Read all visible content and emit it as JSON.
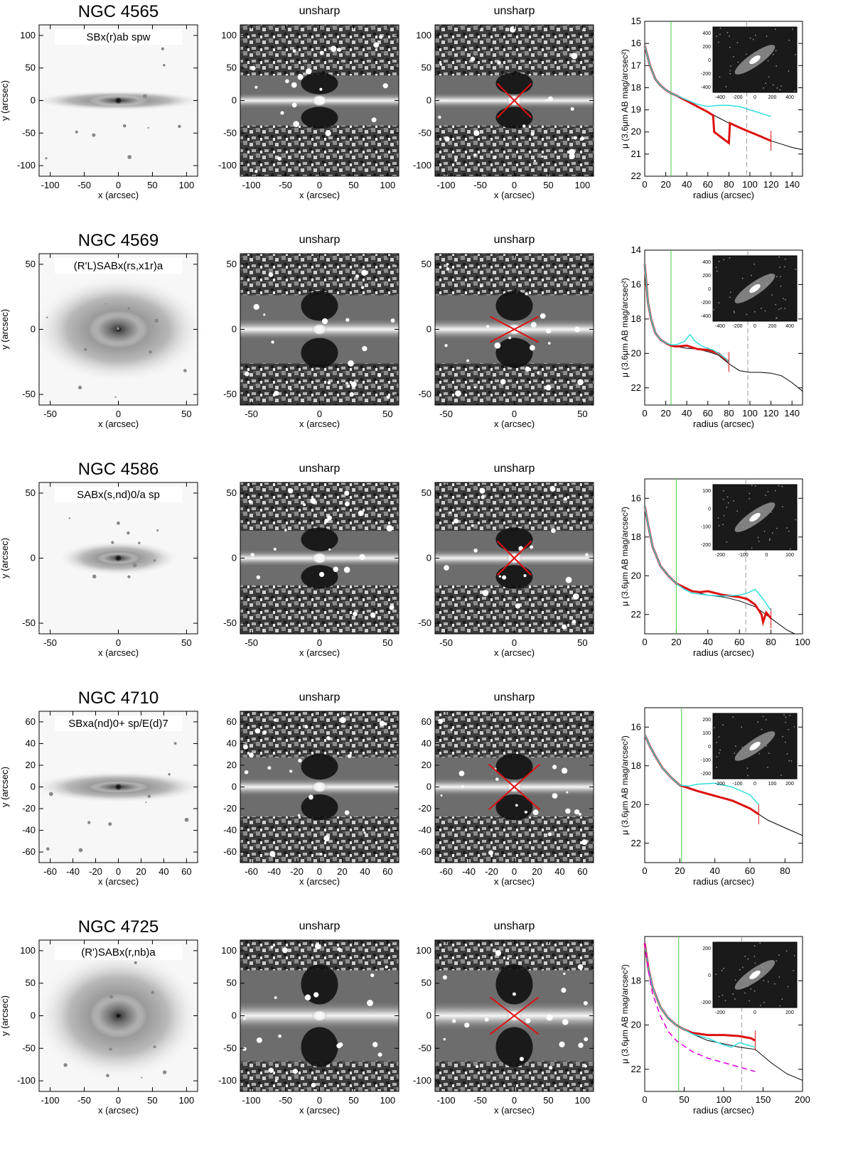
{
  "figure": {
    "labels": {
      "unsharp": "unsharp",
      "x_axis": "x (arcsec)",
      "y_axis": "y (arcsec)"
    },
    "colors": {
      "cross": "#dd1010",
      "profile": "#000000",
      "red_profile": "#dd1010",
      "cyan_profile": "#33dddd",
      "green_line": "#44cc44",
      "dashed_line": "#999999",
      "magenta_profile": "#dd00dd"
    }
  },
  "rows": [
    {
      "title": "NGC 4565",
      "classification": "SBx(r)ab spw",
      "image_ticks": [
        "-100",
        "-50",
        "0",
        "50",
        "100"
      ],
      "profile": {
        "xlabel": "radius (arcsec)",
        "ylabel": "μ (3.6μm AB mag/arcsec²)",
        "xlim": [
          0,
          150
        ],
        "ylim": [
          22,
          15
        ],
        "xticks": [
          "0",
          "20",
          "40",
          "60",
          "80",
          "100",
          "120",
          "140"
        ],
        "yticks": [
          "15",
          "16",
          "17",
          "18",
          "19",
          "20",
          "21",
          "22"
        ],
        "inset_ticks": [
          "400",
          "200",
          "0",
          "-200",
          "-400"
        ],
        "inset_xticks": [
          "-400",
          "-200",
          "0",
          "200",
          "400"
        ]
      }
    },
    {
      "title": "NGC 4569",
      "classification": "(R'L)SABx(rs,x1r)a",
      "image_ticks": [
        "-50",
        "0",
        "50"
      ],
      "profile": {
        "xlabel": "radius (arcsec)",
        "ylabel": "μ (3.6μm AB mag/arcsec²)",
        "xlim": [
          0,
          150
        ],
        "ylim": [
          23,
          14
        ],
        "xticks": [
          "0",
          "20",
          "40",
          "60",
          "80",
          "100",
          "120",
          "140"
        ],
        "yticks": [
          "14",
          "16",
          "18",
          "20",
          "22"
        ],
        "inset_ticks": [
          "400",
          "200",
          "0",
          "-200",
          "-400"
        ],
        "inset_xticks": [
          "-400",
          "-200",
          "0",
          "200",
          "400"
        ]
      }
    },
    {
      "title": "NGC 4586",
      "classification": "SABx(s,nd)0/a sp",
      "image_ticks": [
        "-50",
        "0",
        "50"
      ],
      "profile": {
        "xlabel": "radius (arcsec)",
        "ylabel": "μ (3.6μm AB mag/arcsec²)",
        "xlim": [
          0,
          100
        ],
        "ylim": [
          23,
          15
        ],
        "xticks": [
          "0",
          "20",
          "40",
          "60",
          "80",
          "100"
        ],
        "yticks": [
          "16",
          "18",
          "20",
          "22"
        ],
        "inset_ticks": [
          "100",
          "0",
          "-100",
          "-200"
        ],
        "inset_xticks": [
          "-200",
          "-100",
          "0",
          "100"
        ]
      }
    },
    {
      "title": "NGC 4710",
      "classification": "SBxa(nd)0+ sp/E(d)7",
      "image_ticks": [
        "-60",
        "-40",
        "-20",
        "0",
        "20",
        "40",
        "60"
      ],
      "profile": {
        "xlabel": "radius (arcsec)",
        "ylabel": "μ (3.6μm AB mag/arcsec²)",
        "xlim": [
          0,
          90
        ],
        "ylim": [
          23,
          15
        ],
        "xticks": [
          "0",
          "20",
          "40",
          "60",
          "80"
        ],
        "yticks": [
          "16",
          "18",
          "20",
          "22"
        ],
        "inset_ticks": [
          "200",
          "100",
          "0",
          "-100",
          "-200"
        ],
        "inset_xticks": [
          "-200",
          "-100",
          "0",
          "100",
          "200"
        ]
      }
    },
    {
      "title": "NGC 4725",
      "classification": "(R')SABx(r,nb)a",
      "image_ticks": [
        "-100",
        "-50",
        "0",
        "50",
        "100"
      ],
      "profile": {
        "xlabel": "radius (arcsec)",
        "ylabel": "μ (3.6μm AB mag/arcsec²)",
        "xlim": [
          0,
          200
        ],
        "ylim": [
          23,
          16
        ],
        "xticks": [
          "0",
          "50",
          "100",
          "150",
          "200"
        ],
        "yticks": [
          "18",
          "20",
          "22"
        ],
        "inset_ticks": [
          "200",
          "0",
          "-200"
        ],
        "inset_xticks": [
          "-200",
          "0",
          "200"
        ]
      }
    }
  ],
  "chart_data": [
    {
      "type": "line",
      "galaxy": "NGC 4565",
      "xlim": [
        0,
        150
      ],
      "ylim": [
        22,
        15
      ],
      "ylog": false,
      "series": [
        {
          "color": "#000000",
          "x": [
            0,
            5,
            10,
            15,
            20,
            25,
            30,
            40,
            50,
            60,
            70,
            80,
            90,
            100,
            110,
            120,
            130,
            140,
            150
          ],
          "y": [
            16.1,
            17.0,
            17.6,
            17.9,
            18.1,
            18.25,
            18.35,
            18.6,
            18.85,
            19.1,
            19.35,
            19.6,
            19.8,
            20.0,
            20.2,
            20.4,
            20.55,
            20.7,
            20.8
          ]
        },
        {
          "color": "#dd1010",
          "x": [
            0,
            5,
            10,
            15,
            20,
            25,
            30,
            40,
            50,
            60,
            65,
            66,
            80,
            81,
            90,
            100,
            110,
            120
          ],
          "y": [
            16.1,
            17.0,
            17.6,
            17.9,
            18.1,
            18.25,
            18.35,
            18.6,
            18.85,
            19.1,
            19.25,
            20.0,
            20.5,
            19.6,
            19.8,
            20.0,
            20.2,
            20.4
          ]
        },
        {
          "color": "#33dddd",
          "x": [
            0,
            5,
            10,
            15,
            20,
            25,
            30,
            40,
            50,
            60,
            70,
            80,
            90,
            100,
            110,
            120
          ],
          "y": [
            16.1,
            17.0,
            17.6,
            17.9,
            18.1,
            18.25,
            18.35,
            18.55,
            18.75,
            18.85,
            18.8,
            18.8,
            18.85,
            19.0,
            19.15,
            19.3
          ]
        }
      ],
      "vlines": [
        {
          "x": 25,
          "style": "green"
        },
        {
          "x": 97,
          "style": "dashed"
        }
      ]
    },
    {
      "type": "line",
      "galaxy": "NGC 4569",
      "xlim": [
        0,
        150
      ],
      "ylim": [
        23,
        14
      ],
      "ylog": false,
      "series": [
        {
          "color": "#000000",
          "x": [
            0,
            3,
            6,
            10,
            15,
            20,
            25,
            30,
            40,
            50,
            60,
            70,
            80,
            90,
            100,
            110,
            120,
            130,
            140,
            150
          ],
          "y": [
            14.8,
            17.0,
            18.0,
            18.8,
            19.2,
            19.4,
            19.55,
            19.6,
            19.7,
            19.75,
            19.9,
            20.1,
            20.6,
            21.0,
            21.1,
            21.1,
            21.15,
            21.3,
            21.7,
            22.2
          ]
        },
        {
          "color": "#dd1010",
          "x": [
            0,
            3,
            6,
            10,
            15,
            20,
            25,
            30,
            40,
            50,
            60,
            70,
            80
          ],
          "y": [
            14.8,
            17.0,
            18.0,
            18.8,
            19.2,
            19.4,
            19.55,
            19.6,
            19.55,
            19.75,
            19.8,
            20.0,
            20.5
          ]
        },
        {
          "color": "#33dddd",
          "x": [
            0,
            3,
            6,
            10,
            15,
            20,
            25,
            30,
            38,
            43,
            48,
            55,
            65,
            75,
            80
          ],
          "y": [
            14.8,
            17.0,
            18.0,
            18.8,
            19.2,
            19.4,
            19.5,
            19.5,
            19.3,
            18.9,
            19.3,
            19.6,
            19.8,
            20.2,
            20.5
          ]
        }
      ],
      "vlines": [
        {
          "x": 25,
          "style": "green"
        },
        {
          "x": 98,
          "style": "dashed"
        }
      ]
    },
    {
      "type": "line",
      "galaxy": "NGC 4586",
      "xlim": [
        0,
        100
      ],
      "ylim": [
        23,
        15
      ],
      "ylog": false,
      "series": [
        {
          "color": "#000000",
          "x": [
            0,
            2,
            5,
            10,
            15,
            20,
            25,
            30,
            40,
            50,
            60,
            70,
            75,
            80,
            85,
            90,
            95
          ],
          "y": [
            16.4,
            17.3,
            18.5,
            19.5,
            20.0,
            20.4,
            20.6,
            20.8,
            21.0,
            21.1,
            21.3,
            21.6,
            21.9,
            22.2,
            22.5,
            22.8,
            23.0
          ]
        },
        {
          "color": "#dd1010",
          "x": [
            0,
            2,
            5,
            10,
            15,
            20,
            25,
            30,
            35,
            40,
            50,
            60,
            65,
            70,
            74,
            75,
            77,
            80
          ],
          "y": [
            16.4,
            17.3,
            18.5,
            19.5,
            20.0,
            20.4,
            20.6,
            20.8,
            20.85,
            20.8,
            21.0,
            21.1,
            21.2,
            21.5,
            22.0,
            22.4,
            21.9,
            22.2
          ]
        },
        {
          "color": "#33dddd",
          "x": [
            0,
            2,
            5,
            10,
            15,
            20,
            25,
            30,
            40,
            50,
            60,
            65,
            70,
            75,
            80
          ],
          "y": [
            16.4,
            17.3,
            18.5,
            19.5,
            20.0,
            20.4,
            20.7,
            20.9,
            21.0,
            21.05,
            21.0,
            20.9,
            20.7,
            21.2,
            21.8
          ]
        }
      ],
      "vlines": [
        {
          "x": 20,
          "style": "green"
        },
        {
          "x": 64,
          "style": "dashed"
        }
      ]
    },
    {
      "type": "line",
      "galaxy": "NGC 4710",
      "xlim": [
        0,
        90
      ],
      "ylim": [
        23,
        15
      ],
      "ylog": false,
      "series": [
        {
          "color": "#000000",
          "x": [
            0,
            3,
            6,
            10,
            15,
            20,
            25,
            30,
            40,
            50,
            60,
            70,
            80,
            90
          ],
          "y": [
            16.4,
            17.0,
            17.5,
            18.1,
            18.6,
            19.0,
            19.15,
            19.3,
            19.55,
            19.8,
            20.2,
            20.8,
            21.2,
            21.6
          ]
        },
        {
          "color": "#dd1010",
          "x": [
            0,
            3,
            6,
            10,
            15,
            20,
            25,
            30,
            40,
            50,
            60,
            65
          ],
          "y": [
            16.4,
            17.0,
            17.5,
            18.1,
            18.6,
            19.0,
            19.15,
            19.3,
            19.55,
            19.8,
            20.2,
            20.5
          ]
        },
        {
          "color": "#33dddd",
          "x": [
            0,
            3,
            6,
            10,
            15,
            20,
            25,
            30,
            40,
            50,
            60,
            65
          ],
          "y": [
            16.4,
            17.0,
            17.5,
            18.1,
            18.6,
            19.0,
            19.05,
            18.95,
            18.9,
            19.1,
            19.5,
            20.0
          ]
        }
      ],
      "vlines": [
        {
          "x": 21,
          "style": "green"
        }
      ]
    },
    {
      "type": "line",
      "galaxy": "NGC 4725",
      "xlim": [
        0,
        200
      ],
      "ylim": [
        23,
        16
      ],
      "ylog": false,
      "series": [
        {
          "color": "#000000",
          "x": [
            0,
            5,
            10,
            20,
            30,
            40,
            50,
            60,
            80,
            100,
            120,
            140,
            160,
            180,
            200
          ],
          "y": [
            16.3,
            17.5,
            18.3,
            19.2,
            19.7,
            20.0,
            20.2,
            20.4,
            20.7,
            20.85,
            21.0,
            21.1,
            21.7,
            22.2,
            22.5
          ]
        },
        {
          "color": "#dd1010",
          "x": [
            0,
            5,
            10,
            20,
            30,
            40,
            50,
            60,
            80,
            100,
            120,
            135,
            140
          ],
          "y": [
            16.3,
            17.5,
            18.3,
            19.2,
            19.7,
            20.0,
            20.2,
            20.35,
            20.45,
            20.45,
            20.5,
            20.6,
            20.7
          ]
        },
        {
          "color": "#33dddd",
          "x": [
            0,
            5,
            10,
            20,
            30,
            40,
            50,
            60,
            80,
            100,
            110,
            120,
            130,
            140
          ],
          "y": [
            16.3,
            17.5,
            18.3,
            19.2,
            19.7,
            20.0,
            20.2,
            20.4,
            20.6,
            20.9,
            21.0,
            20.8,
            20.9,
            21.0
          ]
        },
        {
          "color": "#dd00dd",
          "dashed": true,
          "x": [
            0,
            5,
            10,
            20,
            30,
            40,
            60,
            80,
            100,
            120,
            140
          ],
          "y": [
            16.3,
            17.6,
            18.6,
            19.6,
            20.3,
            20.7,
            21.2,
            21.5,
            21.7,
            21.9,
            22.1
          ]
        }
      ],
      "vlines": [
        {
          "x": 43,
          "style": "green"
        },
        {
          "x": 123,
          "style": "dashed"
        }
      ]
    }
  ]
}
